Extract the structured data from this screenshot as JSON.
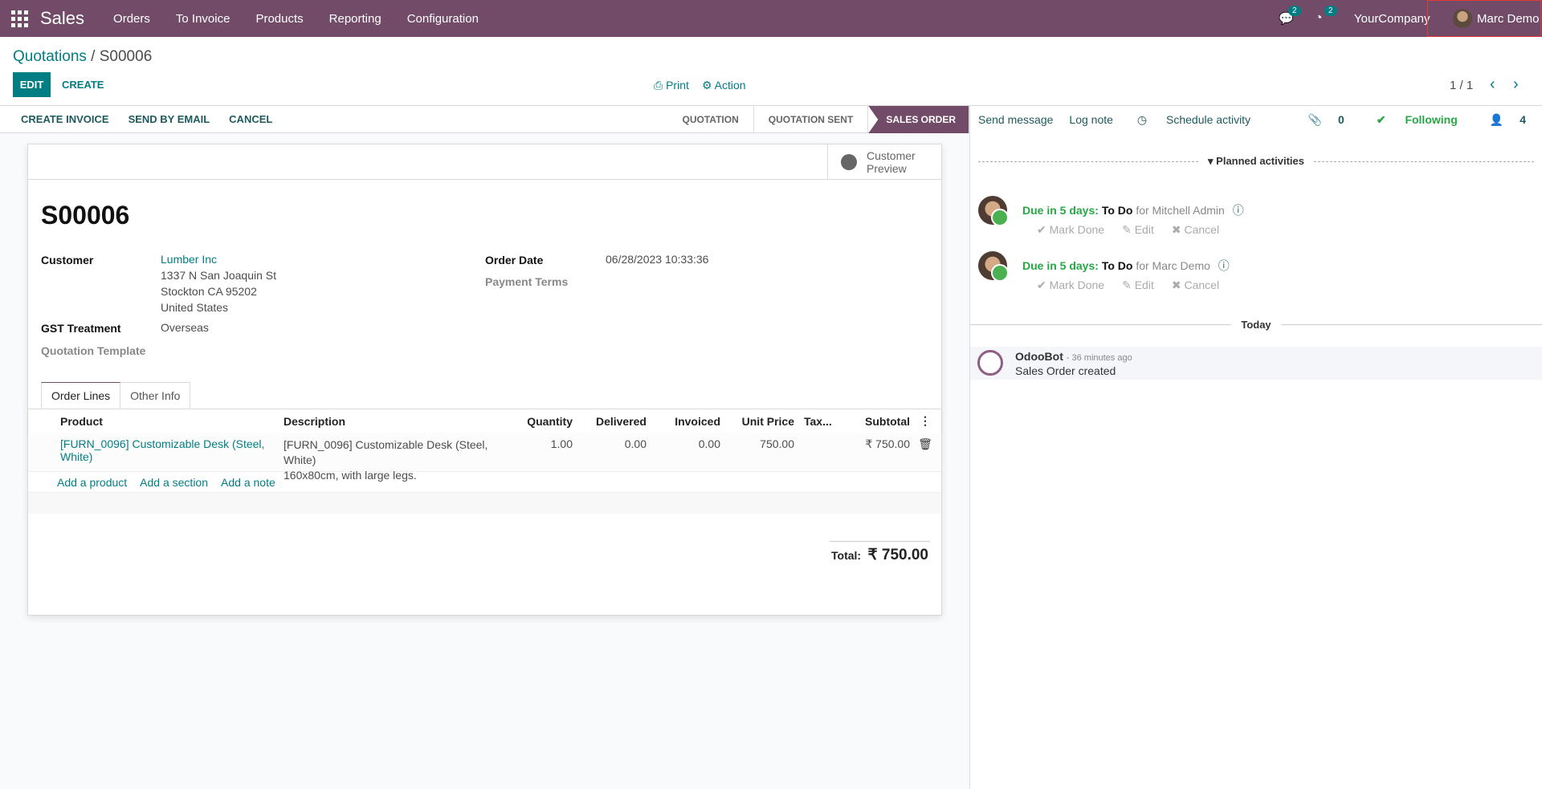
{
  "topbar": {
    "app": "Sales",
    "menus": [
      "Orders",
      "To Invoice",
      "Products",
      "Reporting",
      "Configuration"
    ],
    "messages_count": "2",
    "activities_count": "2",
    "company": "YourCompany",
    "user": "Marc Demo",
    "color": "#714B67"
  },
  "control": {
    "breadcrumb_parent": "Quotations",
    "breadcrumb_sep": " / ",
    "breadcrumb_current": "S00006",
    "edit": "EDIT",
    "create": "CREATE",
    "print": "Print",
    "action": "Action",
    "pager": "1 / 1"
  },
  "statusbar": {
    "buttons": [
      "CREATE INVOICE",
      "SEND BY EMAIL",
      "CANCEL"
    ],
    "stages": [
      "QUOTATION",
      "QUOTATION SENT",
      "SALES ORDER"
    ],
    "active_stage": "SALES ORDER"
  },
  "form": {
    "customer_preview_1": "Customer",
    "customer_preview_2": "Preview",
    "name": "S00006",
    "customer_label": "Customer",
    "customer": "Lumber Inc",
    "address": [
      "1337 N San Joaquin St",
      "Stockton CA 95202",
      "United States"
    ],
    "gst_label": "GST Treatment",
    "gst": "Overseas",
    "template_label": "Quotation Template",
    "order_date_label": "Order Date",
    "order_date": "06/28/2023 10:33:36",
    "payment_terms_label": "Payment Terms",
    "tabs": [
      "Order Lines",
      "Other Info"
    ],
    "columns": [
      "Product",
      "Description",
      "Quantity",
      "Delivered",
      "Invoiced",
      "Unit Price",
      "Tax...",
      "Subtotal"
    ],
    "lines": [
      {
        "product": "[FURN_0096] Customizable Desk (Steel, White)",
        "description_1": "[FURN_0096] Customizable Desk (Steel, White)",
        "description_2": "160x80cm, with large legs.",
        "quantity": "1.00",
        "delivered": "0.00",
        "invoiced": "0.00",
        "unit_price": "750.00",
        "taxes": "",
        "subtotal": "₹ 750.00"
      }
    ],
    "add_product": "Add a product",
    "add_section": "Add a section",
    "add_note": "Add a note",
    "total_label": "Total:",
    "total": "₹ 750.00"
  },
  "chatter": {
    "send_message": "Send message",
    "log_note": "Log note",
    "schedule_activity": "Schedule activity",
    "attachments": "0",
    "following": "Following",
    "followers": "4",
    "planned_title": "Planned activities",
    "activities": [
      {
        "due": "Due in 5 days:",
        "type": "To Do",
        "for": "for Mitchell Admin"
      },
      {
        "due": "Due in 5 days:",
        "type": "To Do",
        "for": "for Marc Demo"
      }
    ],
    "mark_done": "Mark Done",
    "edit": "Edit",
    "cancel": "Cancel",
    "today": "Today",
    "message": {
      "author": "OdooBot",
      "time": "- 36 minutes ago",
      "body": "Sales Order created"
    }
  }
}
